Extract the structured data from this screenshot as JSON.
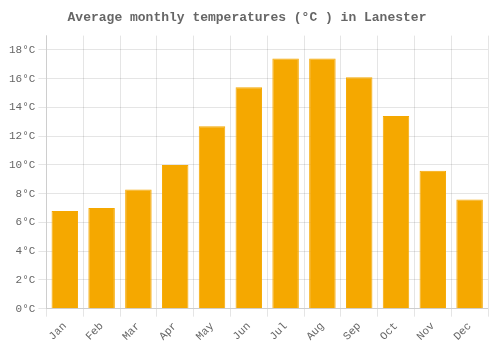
{
  "chart_data": {
    "type": "bar",
    "title": "Average monthly temperatures (°C ) in Lanester",
    "categories": [
      "Jan",
      "Feb",
      "Mar",
      "Apr",
      "May",
      "Jun",
      "Jul",
      "Aug",
      "Sep",
      "Oct",
      "Nov",
      "Dec"
    ],
    "values": [
      6.8,
      7.0,
      8.3,
      10.0,
      12.7,
      15.4,
      17.4,
      17.4,
      16.1,
      13.4,
      9.6,
      7.6
    ],
    "color": "#F5A800",
    "ylim": [
      0,
      19
    ],
    "yticks": [
      {
        "value": 0,
        "label": "0°C"
      },
      {
        "value": 2,
        "label": "2°C"
      },
      {
        "value": 4,
        "label": "4°C"
      },
      {
        "value": 6,
        "label": "6°C"
      },
      {
        "value": 8,
        "label": "8°C"
      },
      {
        "value": 10,
        "label": "10°C"
      },
      {
        "value": 12,
        "label": "12°C"
      },
      {
        "value": 14,
        "label": "14°C"
      },
      {
        "value": 16,
        "label": "16°C"
      },
      {
        "value": 18,
        "label": "18°C"
      }
    ],
    "grid": true
  }
}
